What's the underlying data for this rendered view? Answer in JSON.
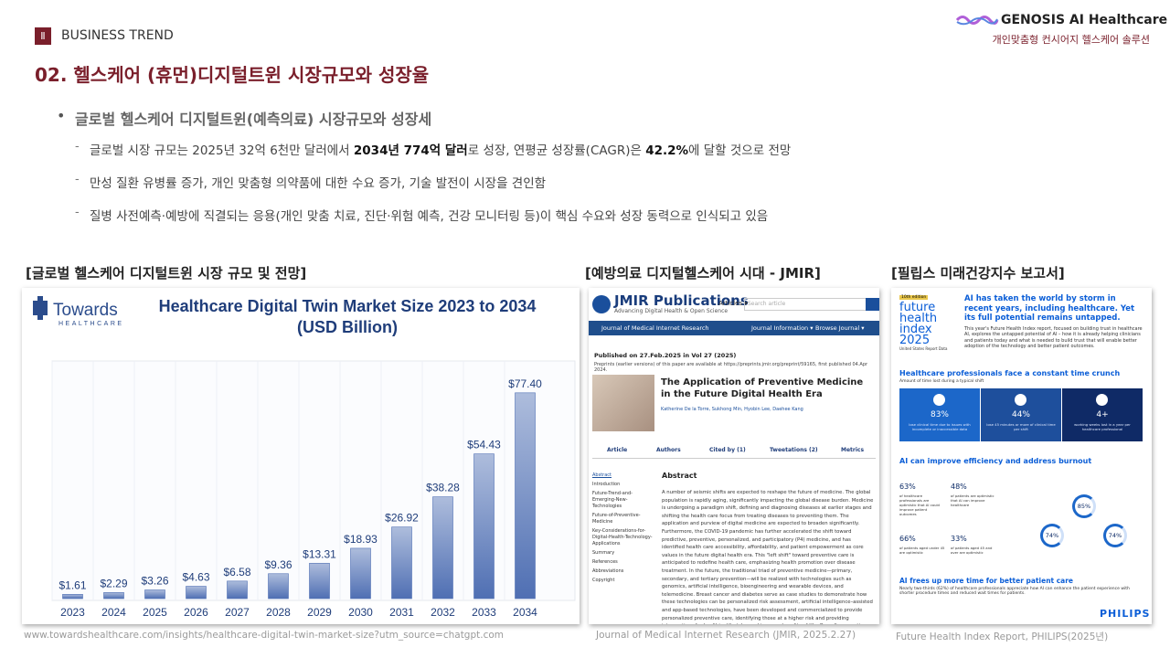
{
  "header": {
    "section_num": "Ⅱ",
    "section": "BUSINESS TREND",
    "brand": "GENOSIS AI Healthcare",
    "brand_sub": "개인맞춤형 컨시어지 헬스케어 솔루션"
  },
  "title": "02. 헬스케어 (휴먼)디지털트윈 시장규모와 성장율",
  "bullet": {
    "heading": "글로벌 헬스케어 디지털트윈(예측의료) 시장규모와 성장세",
    "items": [
      [
        "글로벌 시장 규모는 2025년 32억 6천만 달러에서 ",
        {
          "b": "2034년 774억 달러"
        },
        "로 성장, 연평균 성장률(CAGR)은 ",
        {
          "b": "42.2%"
        },
        "에 달할 것으로 전망"
      ],
      [
        "만성 질환 유병률 증가, 개인 맞춤형 의약품에 대한 수요 증가, 기술 발전이 시장을 견인함"
      ],
      [
        "질병 사전예측·예방에 직결되는 응용(개인 맞춤 치료, 진단·위험 예측, 건강 모니터링 등)이 핵심 수요와 성장 동력으로 인식되고 있음"
      ]
    ]
  },
  "panels": [
    "[글로벌 헬스케어 디지털트윈 시장 규모 및 전망]",
    "[예방의료 디지털헬스케어 시대 - JMIR]",
    "[필립스 미래건강지수 보고서]"
  ],
  "captions": [
    "www.towardshealthcare.com/insights/healthcare-digital-twin-market-size?utm_source=chatgpt.com",
    "Journal of Medical Internet Research (JMIR, 2025.2.27)",
    "Future Health Index Report, PHILIPS(2025년)"
  ],
  "chart": {
    "type": "bar",
    "logo": "Towards",
    "logo_sub": "HEALTHCARE",
    "title": "Healthcare Digital Twin Market Size 2023 to 2034",
    "subtitle": "(USD Billion)",
    "categories": [
      "2023",
      "2024",
      "2025",
      "2026",
      "2027",
      "2028",
      "2029",
      "2030",
      "2031",
      "2032",
      "2033",
      "2034"
    ],
    "values": [
      1.61,
      2.29,
      3.26,
      4.63,
      6.58,
      9.36,
      13.31,
      18.93,
      26.92,
      38.28,
      54.43,
      77.4
    ],
    "value_labels": [
      "$1.61",
      "$2.29",
      "$3.26",
      "$4.63",
      "$6.58",
      "$9.36",
      "$13.31",
      "$18.93",
      "$26.92",
      "$38.28",
      "$54.43",
      "$77.40"
    ],
    "color": "#4f6fb3",
    "ylim": [
      0,
      88
    ]
  },
  "jmir": {
    "logo": "JMIR Publications",
    "tagline": "Advancing Digital Health & Open Science",
    "articles": "Articles ▾",
    "search": "Search article",
    "journal": "Journal of Medical Internet Research",
    "menu": [
      "Journal Information ▾",
      "Browse Journal ▾"
    ],
    "published": "Published on 27.Feb.2025 in Vol 27 (2025)",
    "preprint": "Preprints (earlier versions) of this paper are available at https://preprints.jmir.org/preprint/59165, first published 04.Apr 2024.",
    "article_title": "The Application of Preventive Medicine in the Future Digital Health Era",
    "authors": "Katherine De la Torre, Sukhong Min, Hyobin Lee, Daehee Kang",
    "tabs": [
      "Article",
      "Authors",
      "Cited by (1)",
      "Tweetations (2)",
      "Metrics"
    ],
    "toc": [
      "Abstract",
      "Introduction",
      "Future-Trend-and-Emerging-New-Technologies",
      "Future-of-Preventive-Medicine",
      "Key-Considerations-for-Digital-Health-Technology-Applications",
      "Summary",
      "References",
      "Abbreviations",
      "Copyright"
    ],
    "abstract_heading": "Abstract",
    "abstract": "A number of seismic shifts are expected to reshape the future of medicine. The global population is rapidly aging, significantly impacting the global disease burden. Medicine is undergoing a paradigm shift, defining and diagnosing diseases at earlier stages and shifting the health care focus from treating diseases to preventing them. The application and purview of digital medicine are expected to broaden significantly. Furthermore, the COVID-19 pandemic has further accelerated the shift toward predictive, preventive, personalized, and participatory (P4) medicine, and has identified health care accessibility, affordability, and patient empowerment as core values in the future digital health era. This \"left shift\" toward preventive care is anticipated to redefine health care, emphasizing health promotion over disease treatment. In the future, the traditional triad of preventive medicine—primary, secondary, and tertiary prevention—will be realized with technologies such as genomics, artificial intelligence, bioengineering and wearable devices, and telemedicine. Breast cancer and diabetes serve as case studies to demonstrate how these technologies can be personalized risk assessment, artificial intelligence–assisted and app-based technologies, have been developed and commercialized to provide personalized preventive care, identifying those at a higher risk and providing interventions for healthier lifestyles and improved quality of life. Overall, preventive medicine and the use of advanced technology will hold great potential for improving health care outcomes in the future."
  },
  "philips": {
    "edition": "10th edition",
    "logo": "future health index 2025",
    "report": "United States Report Data",
    "headline": "AI has taken the world by storm in recent years, including healthcare. Yet its full potential remains untapped.",
    "intro": "This year's Future Health Index report, focused on building trust in healthcare AI, explores the untapped potential of AI – how it is already helping clinicians and patients today and what is needed to build trust that will enable better adoption of the technology and better patient outcomes.",
    "s1": "Healthcare professionals face a constant time crunch",
    "s1_sub": "Amount of time lost during a typical shift",
    "boxes": [
      [
        "83%",
        "lose clinical time due to issues with incomplete or inaccessible data"
      ],
      [
        "44%",
        "lose 45 minutes or more of clinical time per shift"
      ],
      [
        "4+",
        "working weeks lost in a year per healthcare professional"
      ]
    ],
    "s2": "AI can improve efficiency and address burnout",
    "stats": [
      [
        "63%",
        "of healthcare professionals are optimistic that AI could improve patient outcomes"
      ],
      [
        "48%",
        "of patients are optimistic that AI can improve healthcare"
      ],
      [
        "66%",
        "of patients aged under 45 are optimistic"
      ],
      [
        "33%",
        "of patients aged 45 and over are optimistic"
      ]
    ],
    "rings": [
      "85%",
      "74%",
      "74%"
    ],
    "s3": "AI frees up more time for better patient care",
    "s3_sub": "Nearly two-thirds (62%) of healthcare professionals appreciate how AI can enhance the patient experience with shorter procedure times and reduced wait times for patients.",
    "brand": "PHILIPS"
  }
}
